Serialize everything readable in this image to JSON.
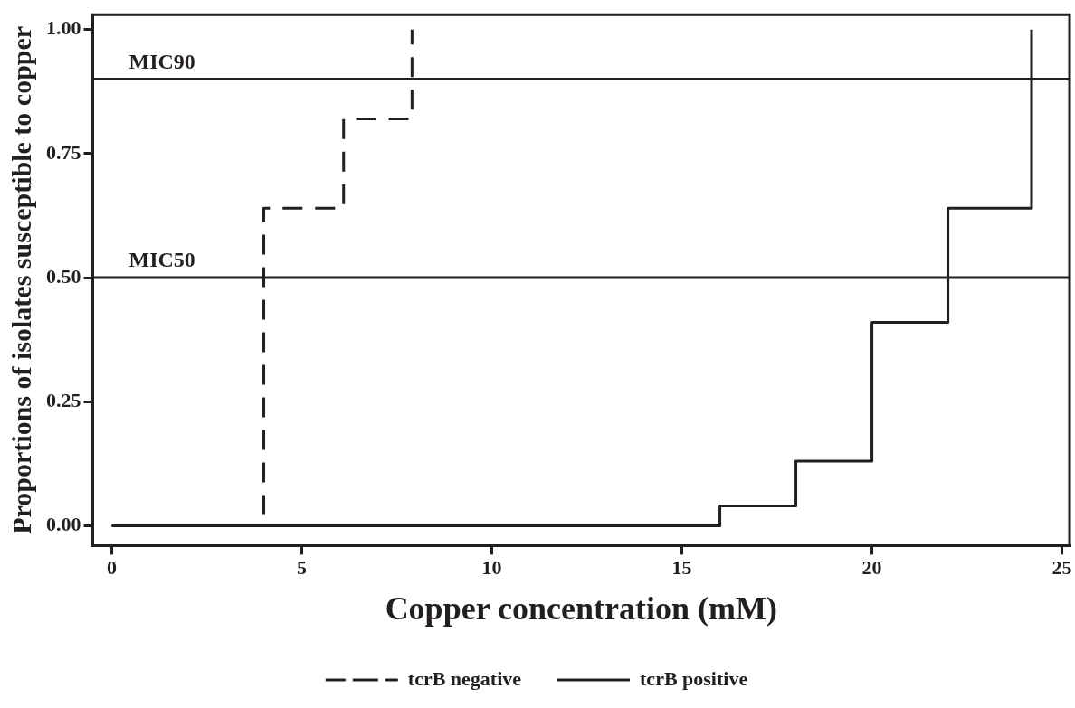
{
  "chart_data": {
    "type": "step",
    "xlabel": "Copper concentration (mM)",
    "ylabel": "Proportions of isolates susceptible to copper",
    "series": [
      {
        "name": "tcrB negative",
        "color": "#231f20",
        "line_style": "dashed",
        "x": [
          0,
          4,
          6.1,
          7.9
        ],
        "values": [
          0,
          0.64,
          0.82,
          1.0
        ]
      },
      {
        "name": "tcrB positive",
        "color": "#231f20",
        "line_style": "solid",
        "x": [
          0,
          16,
          18,
          20,
          22,
          24.2
        ],
        "values": [
          0,
          0.04,
          0.13,
          0.41,
          0.64,
          1.0
        ]
      }
    ],
    "xlim": [
      -0.5,
      25.2
    ],
    "xticks": [
      0,
      5,
      10,
      15,
      20,
      25
    ],
    "ylim": [
      -0.04,
      1.03
    ],
    "yticks": [
      {
        "value": 0,
        "label": "0.00"
      },
      {
        "value": 0.25,
        "label": "0.25"
      },
      {
        "value": 0.5,
        "label": "0.50"
      },
      {
        "value": 0.75,
        "label": "0.75"
      },
      {
        "value": 1,
        "label": "1.00"
      }
    ],
    "ref_lines": [
      {
        "axis": "y",
        "value": 0.9,
        "label": "MIC90"
      },
      {
        "axis": "y",
        "value": 0.5,
        "label": "MIC50"
      }
    ],
    "grid": false,
    "legend": "bottom",
    "marker": "none"
  }
}
